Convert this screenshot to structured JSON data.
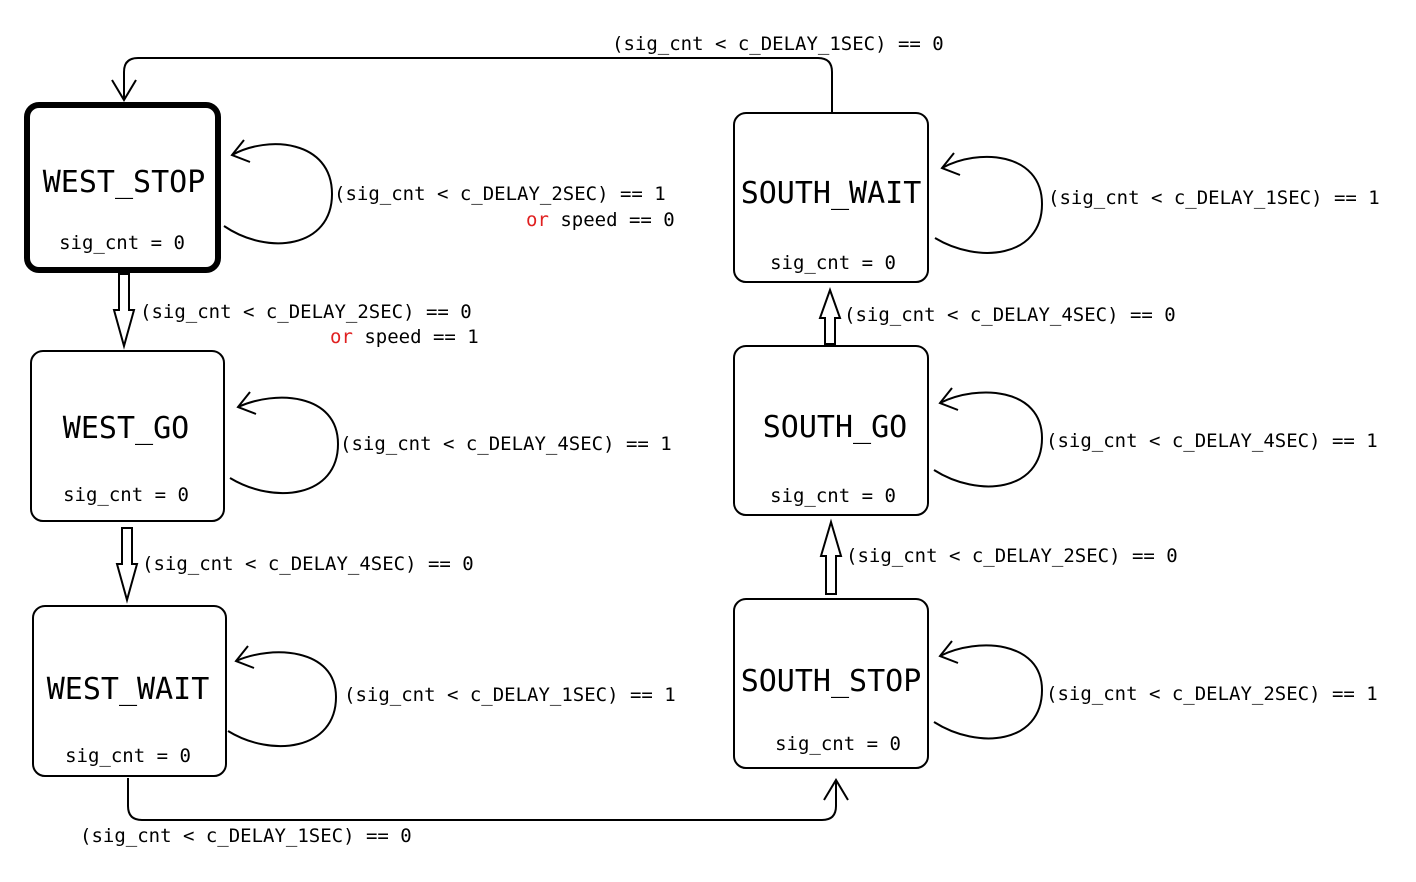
{
  "states": {
    "west_stop": {
      "name": "WEST_STOP",
      "action": "sig_cnt = 0"
    },
    "west_go": {
      "name": "WEST_GO",
      "action": "sig_cnt = 0"
    },
    "west_wait": {
      "name": "WEST_WAIT",
      "action": "sig_cnt = 0"
    },
    "south_stop": {
      "name": "SOUTH_STOP",
      "action": "sig_cnt = 0"
    },
    "south_go": {
      "name": "SOUTH_GO",
      "action": "sig_cnt = 0"
    },
    "south_wait": {
      "name": "SOUTH_WAIT",
      "action": "sig_cnt = 0"
    }
  },
  "transitions": {
    "west_stop_loop": {
      "line1": "(sig_cnt < c_DELAY_2SEC) == 1",
      "or": "or",
      "line2_rest": " speed == 0"
    },
    "west_stop_to_go": {
      "line1": "(sig_cnt < c_DELAY_2SEC) == 0",
      "or": "or",
      "line2_rest": " speed == 1"
    },
    "west_go_loop": "(sig_cnt < c_DELAY_4SEC) == 1",
    "west_go_to_wait": "(sig_cnt < c_DELAY_4SEC) == 0",
    "west_wait_loop": "(sig_cnt < c_DELAY_1SEC) == 1",
    "west_wait_to_south_stop": "(sig_cnt < c_DELAY_1SEC) == 0",
    "south_stop_loop": "(sig_cnt < c_DELAY_2SEC) == 1",
    "south_stop_to_go": "(sig_cnt < c_DELAY_2SEC) == 0",
    "south_go_loop": "(sig_cnt < c_DELAY_4SEC) == 1",
    "south_go_to_wait": "(sig_cnt < c_DELAY_4SEC) == 0",
    "south_wait_loop": "(sig_cnt < c_DELAY_1SEC) == 1",
    "south_wait_to_west_stop": "(sig_cnt < c_DELAY_1SEC) == 0"
  },
  "colors": {
    "keyword": "#e02020",
    "stroke": "#000000"
  }
}
